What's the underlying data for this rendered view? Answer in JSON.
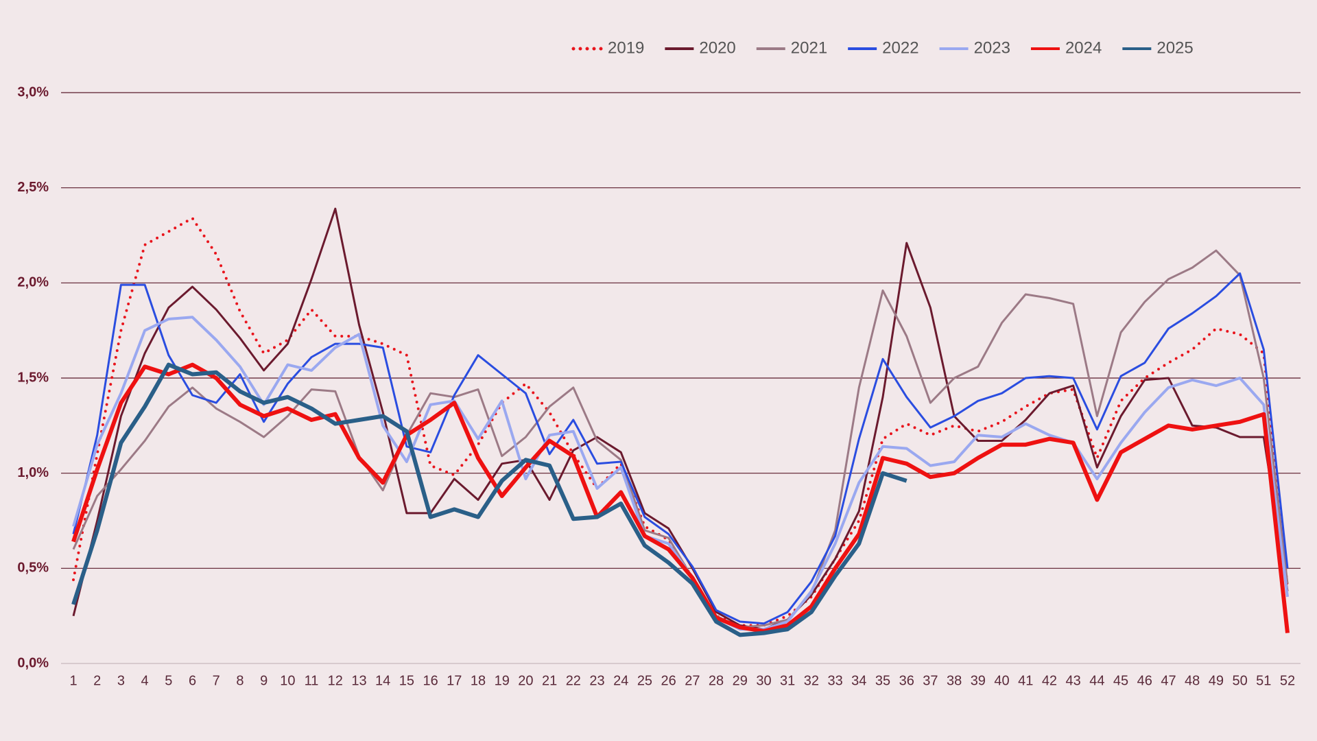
{
  "chart_data": {
    "type": "line",
    "categories": [
      "1",
      "2",
      "3",
      "4",
      "5",
      "6",
      "7",
      "8",
      "9",
      "10",
      "11",
      "12",
      "13",
      "14",
      "15",
      "16",
      "17",
      "18",
      "19",
      "20",
      "21",
      "22",
      "23",
      "24",
      "25",
      "26",
      "27",
      "28",
      "29",
      "30",
      "31",
      "32",
      "33",
      "34",
      "35",
      "36",
      "37",
      "38",
      "39",
      "40",
      "41",
      "42",
      "43",
      "44",
      "45",
      "46",
      "47",
      "48",
      "49",
      "50",
      "51",
      "52"
    ],
    "ylim": [
      0,
      3.0
    ],
    "yticks": [
      {
        "value": 0,
        "label": "0,0%"
      },
      {
        "value": 0.5,
        "label": "0,5%"
      },
      {
        "value": 1.0,
        "label": "1,0%"
      },
      {
        "value": 1.5,
        "label": "1,5%"
      },
      {
        "value": 2.0,
        "label": "2,0%"
      },
      {
        "value": 2.5,
        "label": "2,5%"
      },
      {
        "value": 3.0,
        "label": "3,0%"
      }
    ],
    "grid": true,
    "legend": "top-right",
    "series": [
      {
        "name": "2019",
        "color": "#e8141c",
        "style": "dotted",
        "width": 4,
        "values": [
          0.44,
          1.1,
          1.75,
          2.2,
          2.27,
          2.34,
          2.15,
          1.85,
          1.63,
          1.7,
          1.86,
          1.72,
          1.72,
          1.68,
          1.62,
          1.04,
          0.99,
          1.15,
          1.37,
          1.47,
          1.32,
          1.1,
          0.92,
          1.05,
          0.72,
          0.65,
          0.45,
          0.25,
          0.2,
          0.2,
          0.25,
          0.35,
          0.55,
          0.75,
          1.18,
          1.26,
          1.2,
          1.25,
          1.22,
          1.27,
          1.35,
          1.42,
          1.44,
          1.08,
          1.38,
          1.5,
          1.58,
          1.65,
          1.76,
          1.73,
          1.63,
          0.4
        ]
      },
      {
        "name": "2020",
        "color": "#6b1a2e",
        "style": "solid",
        "width": 3,
        "values": [
          0.25,
          0.75,
          1.3,
          1.63,
          1.87,
          1.98,
          1.86,
          1.71,
          1.54,
          1.68,
          2.02,
          2.39,
          1.78,
          1.32,
          0.79,
          0.79,
          0.97,
          0.86,
          1.05,
          1.07,
          0.86,
          1.12,
          1.19,
          1.11,
          0.79,
          0.71,
          0.5,
          0.27,
          0.2,
          0.18,
          0.23,
          0.36,
          0.55,
          0.8,
          1.4,
          2.21,
          1.87,
          1.3,
          1.17,
          1.17,
          1.28,
          1.42,
          1.46,
          1.03,
          1.3,
          1.49,
          1.5,
          1.25,
          1.24,
          1.19,
          1.19,
          0.38
        ]
      },
      {
        "name": "2021",
        "color": "#9c7a86",
        "style": "solid",
        "width": 3,
        "values": [
          0.6,
          0.88,
          1.02,
          1.17,
          1.35,
          1.45,
          1.34,
          1.27,
          1.19,
          1.3,
          1.44,
          1.43,
          1.09,
          0.91,
          1.2,
          1.42,
          1.4,
          1.44,
          1.09,
          1.19,
          1.35,
          1.45,
          1.17,
          1.07,
          0.7,
          0.66,
          0.45,
          0.25,
          0.19,
          0.2,
          0.23,
          0.37,
          0.7,
          1.45,
          1.96,
          1.72,
          1.37,
          1.5,
          1.56,
          1.79,
          1.94,
          1.92,
          1.89,
          1.3,
          1.74,
          1.9,
          2.02,
          2.08,
          2.17,
          2.04,
          1.5,
          0.42
        ]
      },
      {
        "name": "2022",
        "color": "#2a4de0",
        "style": "solid",
        "width": 3,
        "values": [
          0.68,
          1.2,
          1.99,
          1.99,
          1.62,
          1.41,
          1.37,
          1.52,
          1.27,
          1.47,
          1.61,
          1.68,
          1.68,
          1.66,
          1.14,
          1.11,
          1.41,
          1.62,
          1.52,
          1.42,
          1.1,
          1.28,
          1.05,
          1.06,
          0.77,
          0.68,
          0.51,
          0.28,
          0.22,
          0.21,
          0.27,
          0.43,
          0.67,
          1.18,
          1.6,
          1.4,
          1.24,
          1.3,
          1.38,
          1.42,
          1.5,
          1.51,
          1.5,
          1.23,
          1.51,
          1.58,
          1.76,
          1.84,
          1.93,
          2.05,
          1.65,
          0.5
        ]
      },
      {
        "name": "2023",
        "color": "#9aa8f0",
        "style": "solid",
        "width": 4,
        "values": [
          0.72,
          1.15,
          1.42,
          1.75,
          1.81,
          1.82,
          1.7,
          1.56,
          1.36,
          1.57,
          1.54,
          1.66,
          1.73,
          1.25,
          1.06,
          1.36,
          1.38,
          1.18,
          1.38,
          0.97,
          1.2,
          1.22,
          0.92,
          1.03,
          0.67,
          0.63,
          0.45,
          0.24,
          0.18,
          0.18,
          0.22,
          0.38,
          0.63,
          0.95,
          1.14,
          1.13,
          1.04,
          1.06,
          1.2,
          1.19,
          1.26,
          1.2,
          1.16,
          0.97,
          1.16,
          1.32,
          1.45,
          1.49,
          1.46,
          1.5,
          1.36,
          0.35
        ]
      },
      {
        "name": "2024",
        "color": "#ee1111",
        "style": "solid",
        "width": 6,
        "values": [
          0.64,
          1.02,
          1.37,
          1.56,
          1.52,
          1.57,
          1.5,
          1.36,
          1.3,
          1.34,
          1.28,
          1.31,
          1.08,
          0.95,
          1.2,
          1.28,
          1.37,
          1.08,
          0.88,
          1.03,
          1.17,
          1.09,
          0.77,
          0.9,
          0.67,
          0.6,
          0.45,
          0.24,
          0.19,
          0.17,
          0.2,
          0.3,
          0.5,
          0.68,
          1.08,
          1.05,
          0.98,
          1.0,
          1.08,
          1.15,
          1.15,
          1.18,
          1.16,
          0.86,
          1.11,
          1.18,
          1.25,
          1.23,
          1.25,
          1.27,
          1.31,
          0.16
        ]
      },
      {
        "name": "2025",
        "color": "#2a5f88",
        "style": "solid",
        "width": 6,
        "values": [
          0.31,
          0.7,
          1.16,
          1.35,
          1.57,
          1.52,
          1.53,
          1.43,
          1.37,
          1.4,
          1.34,
          1.26,
          1.28,
          1.3,
          1.22,
          0.77,
          0.81,
          0.77,
          0.96,
          1.07,
          1.04,
          0.76,
          0.77,
          0.84,
          0.62,
          0.53,
          0.42,
          0.22,
          0.15,
          0.16,
          0.18,
          0.27,
          0.46,
          0.63,
          1.0,
          0.96,
          null,
          null,
          null,
          null,
          null,
          null,
          null,
          null,
          null,
          null,
          null,
          null,
          null,
          null,
          null,
          null
        ]
      }
    ]
  }
}
